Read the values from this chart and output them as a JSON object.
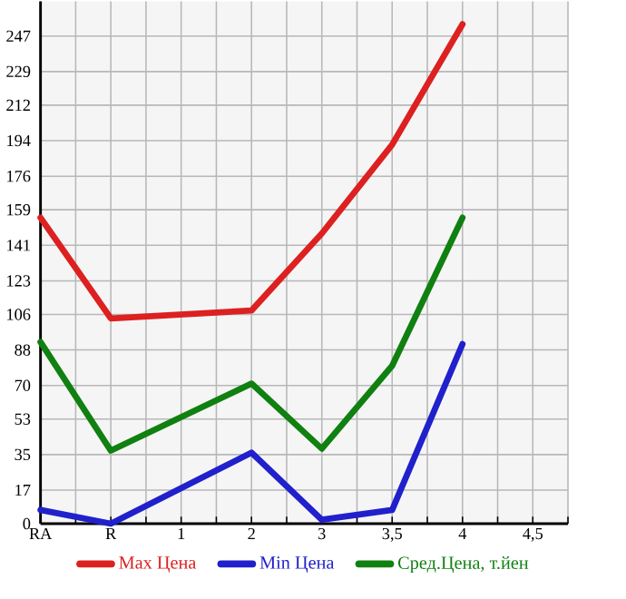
{
  "chart_data": {
    "type": "line",
    "categories": [
      "RA",
      "R",
      "1",
      "2",
      "3",
      "3,5",
      "4",
      "4,5"
    ],
    "series": [
      {
        "name": "Max Цена",
        "color": "#dd2020",
        "values": [
          155,
          104,
          null,
          108,
          147,
          192,
          253,
          null
        ]
      },
      {
        "name": "Min Цена",
        "color": "#2020cc",
        "values": [
          7,
          0,
          null,
          36,
          2,
          7,
          91,
          null
        ]
      },
      {
        "name": "Сред.Цена, т.йен",
        "color": "#108010",
        "values": [
          92,
          37,
          null,
          71,
          38,
          80,
          155,
          null
        ]
      }
    ],
    "ylim": [
      0,
      264.6
    ],
    "yticks": [
      0,
      17,
      35,
      53,
      70,
      88,
      106,
      123,
      141,
      159,
      176,
      194,
      212,
      229,
      247
    ],
    "grid": true,
    "legend": "bottom",
    "marker": "none",
    "line_style": "solid"
  }
}
